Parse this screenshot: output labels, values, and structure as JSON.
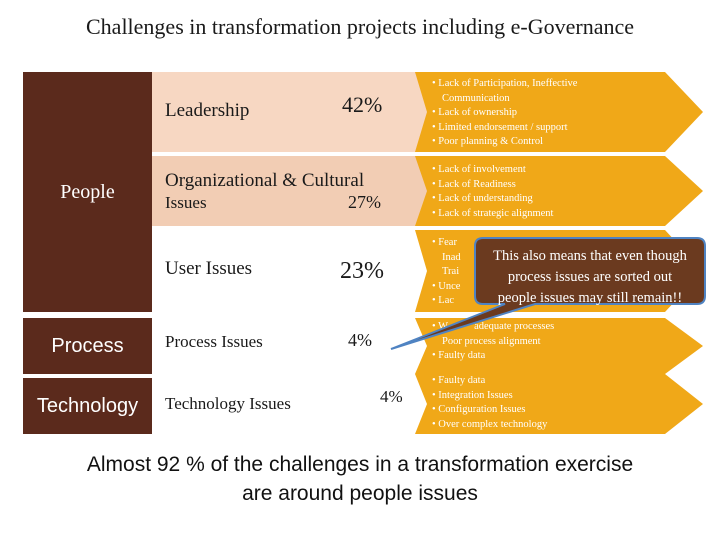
{
  "title": "Challenges in transformation projects including e-Governance",
  "categories": [
    {
      "label": "People"
    },
    {
      "label": "Process"
    },
    {
      "label": "Technology"
    }
  ],
  "issues": [
    {
      "label_lines": [
        "Leadership"
      ],
      "percent": "42%",
      "bullets": [
        "• Lack of Participation, Ineffective",
        "  Communication",
        "• Lack of ownership",
        "• Limited endorsement / support",
        "• Poor planning & Control"
      ]
    },
    {
      "label_lines": [
        "Organizational & Cultural",
        "Issues"
      ],
      "percent": "27%",
      "bullets": [
        "• Lack of involvement",
        "• Lack of Readiness",
        "• Lack of understanding",
        "• Lack of strategic alignment"
      ]
    },
    {
      "label_lines": [
        "User Issues"
      ],
      "percent": "23%",
      "bullets": [
        "• Fear",
        "  Inad",
        "  Trai",
        "• Unce",
        "• Lac"
      ]
    },
    {
      "label_lines": [
        "Process Issues"
      ],
      "percent": "4%",
      "bullets": [
        "• W          adequate processes",
        "  Poor process alignment",
        "• Faulty data"
      ]
    },
    {
      "label_lines": [
        "Technology Issues"
      ],
      "percent": "4%",
      "bullets": [
        "• Faulty data",
        "• Integration Issues",
        "• Configuration Issues",
        "• Over complex technology"
      ]
    }
  ],
  "callout": {
    "lines": [
      "This also means that even though",
      "process issues are sorted out",
      "people issues may still remain!!"
    ]
  },
  "summary": {
    "line1": "Almost 92 % of the challenges in a transformation exercise",
    "line2": "are around people issues"
  },
  "colors": {
    "category_fill": "#5b2a1c",
    "band_fill": "#f7d7c2",
    "arrow_fill": "#f0a818",
    "callout_fill": "#6b3a1f",
    "callout_border": "#4f83c2"
  }
}
